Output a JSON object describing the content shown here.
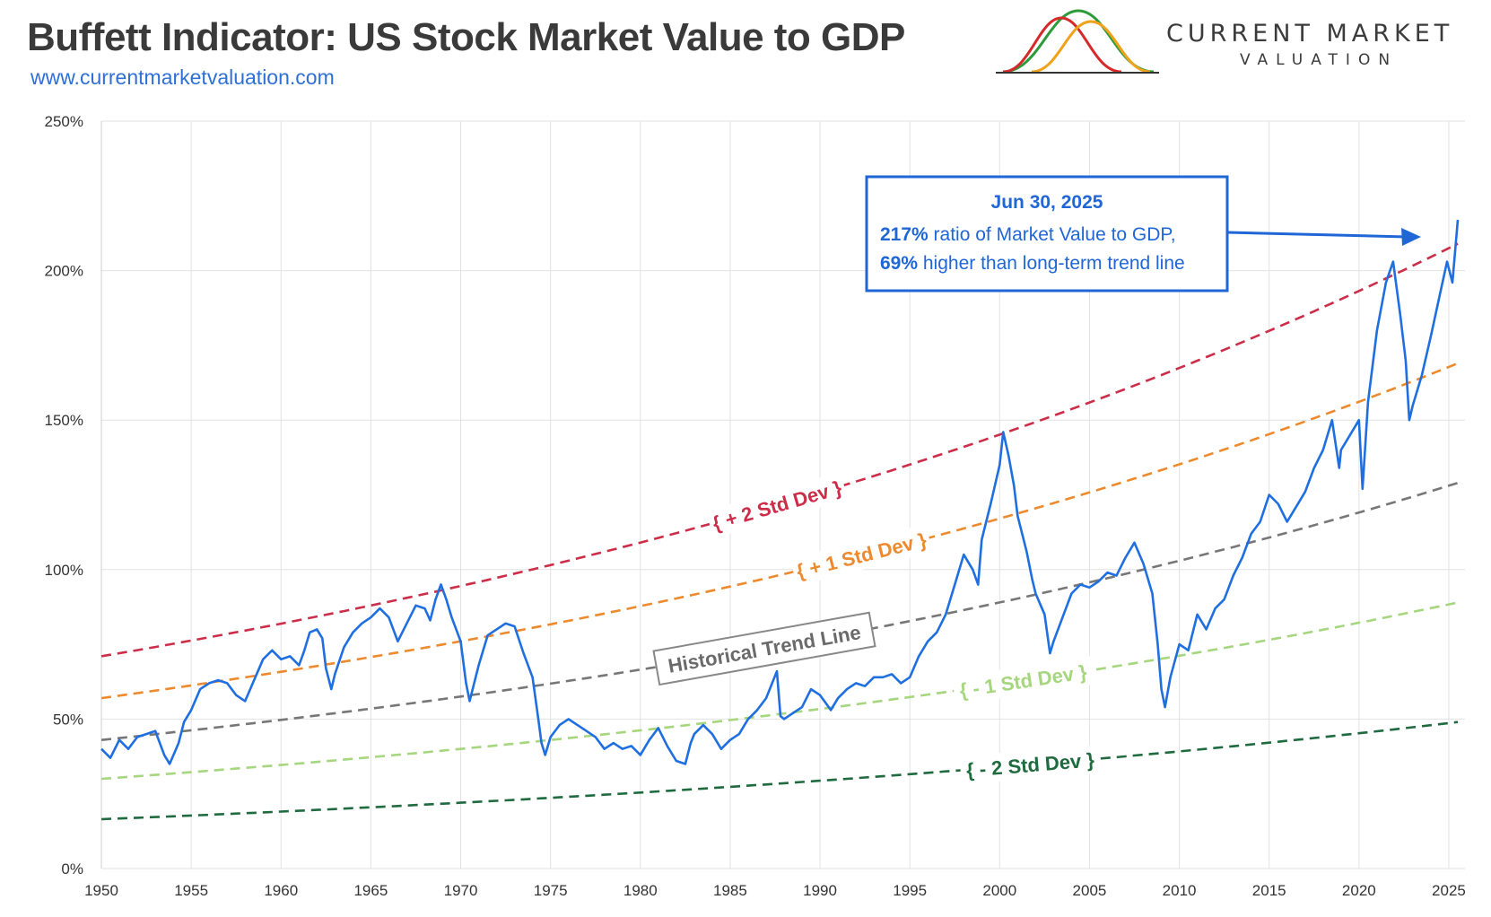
{
  "header": {
    "title": "Buffett Indicator: US Stock Market Value to GDP",
    "url": "www.currentmarketvaluation.com",
    "logo_top": "CURRENT MARKET",
    "logo_bottom": "VALUATION",
    "logo_colors": [
      "#d62a2a",
      "#f0a21a",
      "#2e9b3a"
    ]
  },
  "annotation": {
    "date": "Jun 30, 2025",
    "line1_value": "217%",
    "line1_text": " ratio of Market Value to GDP,",
    "line2_value": "69%",
    "line2_text": " higher than long-term trend line"
  },
  "chart_data": {
    "type": "line",
    "title": "Buffett Indicator: US Stock Market Value to GDP",
    "xlabel": "",
    "ylabel": "",
    "xlim": [
      1950,
      2025.9
    ],
    "ylim": [
      0,
      250
    ],
    "grid": true,
    "x_ticks": [
      "1950",
      "1955",
      "1960",
      "1965",
      "1970",
      "1975",
      "1980",
      "1985",
      "1990",
      "1995",
      "2000",
      "2005",
      "2010",
      "2015",
      "2020",
      "2025"
    ],
    "y_ticks": [
      "0%",
      "50%",
      "100%",
      "150%",
      "200%",
      "250%"
    ],
    "band_labels": {
      "plus2": "+ 2 Std Dev",
      "plus1": "+ 1 Std Dev",
      "trend": "Historical Trend Line",
      "minus1": "- 1 Std Dev",
      "minus2": "- 2 Std Dev"
    },
    "bands": [
      {
        "key": "plus2",
        "color": "#cc2e4a",
        "start": 71,
        "end": 209
      },
      {
        "key": "plus1",
        "color": "#ee8a2e",
        "start": 57,
        "end": 169
      },
      {
        "key": "trend",
        "color": "#777777",
        "start": 43,
        "end": 129
      },
      {
        "key": "minus1",
        "color": "#a6d67e",
        "start": 30,
        "end": 89
      },
      {
        "key": "minus2",
        "color": "#1f6b3f",
        "start": 16.5,
        "end": 49
      }
    ],
    "series": [
      {
        "color": "#1f6fe0",
        "points": [
          [
            1950.0,
            40
          ],
          [
            1950.5,
            37
          ],
          [
            1951.0,
            43
          ],
          [
            1951.5,
            40
          ],
          [
            1952.0,
            44
          ],
          [
            1952.5,
            45
          ],
          [
            1953.0,
            46
          ],
          [
            1953.5,
            38
          ],
          [
            1953.8,
            35
          ],
          [
            1954.3,
            42
          ],
          [
            1954.6,
            49
          ],
          [
            1955.0,
            53
          ],
          [
            1955.5,
            60
          ],
          [
            1956.0,
            62
          ],
          [
            1956.5,
            63
          ],
          [
            1957.0,
            62
          ],
          [
            1957.5,
            58
          ],
          [
            1958.0,
            56
          ],
          [
            1958.5,
            63
          ],
          [
            1959.0,
            70
          ],
          [
            1959.5,
            73
          ],
          [
            1960.0,
            70
          ],
          [
            1960.5,
            71
          ],
          [
            1961.0,
            68
          ],
          [
            1961.3,
            73
          ],
          [
            1961.6,
            79
          ],
          [
            1962.0,
            80
          ],
          [
            1962.3,
            77
          ],
          [
            1962.5,
            67
          ],
          [
            1962.8,
            60
          ],
          [
            1963.0,
            65
          ],
          [
            1963.5,
            74
          ],
          [
            1964.0,
            79
          ],
          [
            1964.5,
            82
          ],
          [
            1965.0,
            84
          ],
          [
            1965.5,
            87
          ],
          [
            1966.0,
            84
          ],
          [
            1966.5,
            76
          ],
          [
            1967.0,
            82
          ],
          [
            1967.5,
            88
          ],
          [
            1968.0,
            87
          ],
          [
            1968.3,
            83
          ],
          [
            1968.6,
            90
          ],
          [
            1968.9,
            95
          ],
          [
            1969.2,
            90
          ],
          [
            1969.5,
            84
          ],
          [
            1970.0,
            76
          ],
          [
            1970.3,
            62
          ],
          [
            1970.5,
            56
          ],
          [
            1971.0,
            68
          ],
          [
            1971.5,
            78
          ],
          [
            1972.0,
            80
          ],
          [
            1972.5,
            82
          ],
          [
            1973.0,
            81
          ],
          [
            1973.5,
            72
          ],
          [
            1974.0,
            64
          ],
          [
            1974.3,
            51
          ],
          [
            1974.5,
            42
          ],
          [
            1974.7,
            38
          ],
          [
            1975.0,
            44
          ],
          [
            1975.5,
            48
          ],
          [
            1976.0,
            50
          ],
          [
            1976.5,
            48
          ],
          [
            1977.0,
            46
          ],
          [
            1977.5,
            44
          ],
          [
            1978.0,
            40
          ],
          [
            1978.5,
            42
          ],
          [
            1979.0,
            40
          ],
          [
            1979.5,
            41
          ],
          [
            1980.0,
            38
          ],
          [
            1980.5,
            43
          ],
          [
            1981.0,
            47
          ],
          [
            1981.5,
            41
          ],
          [
            1982.0,
            36
          ],
          [
            1982.5,
            35
          ],
          [
            1982.8,
            42
          ],
          [
            1983.0,
            45
          ],
          [
            1983.5,
            48
          ],
          [
            1984.0,
            45
          ],
          [
            1984.5,
            40
          ],
          [
            1985.0,
            43
          ],
          [
            1985.5,
            45
          ],
          [
            1986.0,
            50
          ],
          [
            1986.5,
            53
          ],
          [
            1987.0,
            57
          ],
          [
            1987.6,
            66
          ],
          [
            1987.8,
            51
          ],
          [
            1988.0,
            50
          ],
          [
            1988.5,
            52
          ],
          [
            1989.0,
            54
          ],
          [
            1989.5,
            60
          ],
          [
            1990.0,
            58
          ],
          [
            1990.6,
            53
          ],
          [
            1991.0,
            57
          ],
          [
            1991.5,
            60
          ],
          [
            1992.0,
            62
          ],
          [
            1992.5,
            61
          ],
          [
            1993.0,
            64
          ],
          [
            1993.5,
            64
          ],
          [
            1994.0,
            65
          ],
          [
            1994.5,
            62
          ],
          [
            1995.0,
            64
          ],
          [
            1995.5,
            71
          ],
          [
            1996.0,
            76
          ],
          [
            1996.5,
            79
          ],
          [
            1997.0,
            85
          ],
          [
            1997.5,
            95
          ],
          [
            1998.0,
            105
          ],
          [
            1998.5,
            100
          ],
          [
            1998.8,
            95
          ],
          [
            1999.0,
            110
          ],
          [
            1999.5,
            122
          ],
          [
            2000.0,
            135
          ],
          [
            2000.2,
            146
          ],
          [
            2000.5,
            138
          ],
          [
            2000.8,
            128
          ],
          [
            2001.0,
            118
          ],
          [
            2001.5,
            106
          ],
          [
            2001.8,
            97
          ],
          [
            2002.0,
            92
          ],
          [
            2002.5,
            85
          ],
          [
            2002.8,
            72
          ],
          [
            2003.0,
            76
          ],
          [
            2003.5,
            84
          ],
          [
            2004.0,
            92
          ],
          [
            2004.5,
            95
          ],
          [
            2005.0,
            94
          ],
          [
            2005.5,
            96
          ],
          [
            2006.0,
            99
          ],
          [
            2006.5,
            98
          ],
          [
            2007.0,
            104
          ],
          [
            2007.5,
            109
          ],
          [
            2008.0,
            102
          ],
          [
            2008.5,
            92
          ],
          [
            2008.8,
            75
          ],
          [
            2009.0,
            60
          ],
          [
            2009.2,
            54
          ],
          [
            2009.5,
            64
          ],
          [
            2010.0,
            75
          ],
          [
            2010.5,
            73
          ],
          [
            2011.0,
            85
          ],
          [
            2011.5,
            80
          ],
          [
            2012.0,
            87
          ],
          [
            2012.5,
            90
          ],
          [
            2013.0,
            98
          ],
          [
            2013.5,
            104
          ],
          [
            2014.0,
            112
          ],
          [
            2014.5,
            116
          ],
          [
            2015.0,
            125
          ],
          [
            2015.5,
            122
          ],
          [
            2016.0,
            116
          ],
          [
            2016.5,
            121
          ],
          [
            2017.0,
            126
          ],
          [
            2017.5,
            134
          ],
          [
            2018.0,
            140
          ],
          [
            2018.5,
            150
          ],
          [
            2018.9,
            134
          ],
          [
            2019.0,
            140
          ],
          [
            2019.5,
            145
          ],
          [
            2020.0,
            150
          ],
          [
            2020.2,
            127
          ],
          [
            2020.5,
            156
          ],
          [
            2021.0,
            180
          ],
          [
            2021.5,
            196
          ],
          [
            2021.9,
            203
          ],
          [
            2022.3,
            185
          ],
          [
            2022.6,
            170
          ],
          [
            2022.8,
            150
          ],
          [
            2023.0,
            155
          ],
          [
            2023.5,
            165
          ],
          [
            2024.0,
            178
          ],
          [
            2024.5,
            192
          ],
          [
            2024.9,
            203
          ],
          [
            2025.2,
            196
          ],
          [
            2025.5,
            217
          ]
        ]
      }
    ]
  }
}
